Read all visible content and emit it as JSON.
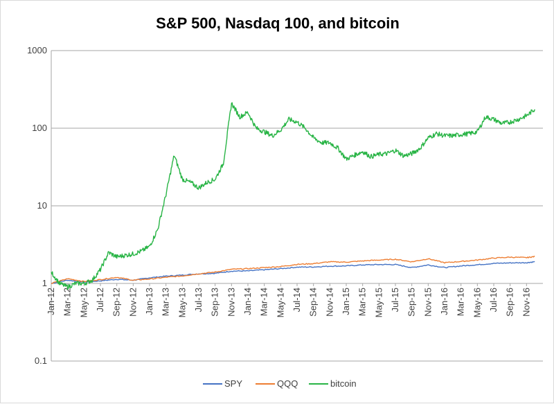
{
  "chart_data": {
    "type": "line",
    "title": "S&P 500, Nasdaq 100, and bitcoin",
    "xlabel": "",
    "ylabel": "",
    "y_scale": "log",
    "ylim": [
      0.1,
      1000
    ],
    "y_ticks": [
      "0.1",
      "1",
      "10",
      "100",
      "1000"
    ],
    "x_range": [
      "2012-01",
      "2016-12"
    ],
    "x_tick_labels": [
      "Jan-12",
      "Mar-12",
      "May-12",
      "Jul-12",
      "Sep-12",
      "Nov-12",
      "Jan-13",
      "Mar-13",
      "May-13",
      "Jul-13",
      "Sep-13",
      "Nov-13",
      "Jan-14",
      "Mar-14",
      "May-14",
      "Jul-14",
      "Sep-14",
      "Nov-14",
      "Jan-15",
      "Mar-15",
      "May-15",
      "Jul-15",
      "Sep-15",
      "Nov-15",
      "Jan-16",
      "Mar-16",
      "May-16",
      "Jul-16",
      "Sep-16",
      "Nov-16"
    ],
    "grid": "horizontal",
    "legend_position": "bottom",
    "series": [
      {
        "name": "SPY",
        "color": "#4472c4",
        "points": [
          [
            "2012-01",
            1.0
          ],
          [
            "2012-03",
            1.1
          ],
          [
            "2012-05",
            1.04
          ],
          [
            "2012-07",
            1.08
          ],
          [
            "2012-09",
            1.13
          ],
          [
            "2012-11",
            1.1
          ],
          [
            "2013-01",
            1.18
          ],
          [
            "2013-03",
            1.24
          ],
          [
            "2013-05",
            1.28
          ],
          [
            "2013-07",
            1.33
          ],
          [
            "2013-09",
            1.35
          ],
          [
            "2013-11",
            1.44
          ],
          [
            "2014-01",
            1.45
          ],
          [
            "2014-03",
            1.5
          ],
          [
            "2014-05",
            1.55
          ],
          [
            "2014-07",
            1.62
          ],
          [
            "2014-09",
            1.63
          ],
          [
            "2014-11",
            1.67
          ],
          [
            "2015-01",
            1.68
          ],
          [
            "2015-03",
            1.73
          ],
          [
            "2015-05",
            1.75
          ],
          [
            "2015-07",
            1.75
          ],
          [
            "2015-09",
            1.6
          ],
          [
            "2015-11",
            1.73
          ],
          [
            "2016-01",
            1.6
          ],
          [
            "2016-03",
            1.68
          ],
          [
            "2016-05",
            1.74
          ],
          [
            "2016-07",
            1.81
          ],
          [
            "2016-09",
            1.84
          ],
          [
            "2016-11",
            1.85
          ],
          [
            "2016-12",
            1.9
          ]
        ]
      },
      {
        "name": "QQQ",
        "color": "#ed7d31",
        "points": [
          [
            "2012-01",
            1.0
          ],
          [
            "2012-03",
            1.15
          ],
          [
            "2012-05",
            1.06
          ],
          [
            "2012-07",
            1.12
          ],
          [
            "2012-09",
            1.2
          ],
          [
            "2012-11",
            1.1
          ],
          [
            "2013-01",
            1.14
          ],
          [
            "2013-03",
            1.2
          ],
          [
            "2013-05",
            1.25
          ],
          [
            "2013-07",
            1.33
          ],
          [
            "2013-09",
            1.4
          ],
          [
            "2013-11",
            1.52
          ],
          [
            "2014-01",
            1.55
          ],
          [
            "2014-03",
            1.6
          ],
          [
            "2014-05",
            1.65
          ],
          [
            "2014-07",
            1.76
          ],
          [
            "2014-09",
            1.8
          ],
          [
            "2014-11",
            1.9
          ],
          [
            "2015-01",
            1.88
          ],
          [
            "2015-03",
            1.95
          ],
          [
            "2015-05",
            2.0
          ],
          [
            "2015-07",
            2.05
          ],
          [
            "2015-09",
            1.9
          ],
          [
            "2015-11",
            2.08
          ],
          [
            "2016-01",
            1.85
          ],
          [
            "2016-03",
            1.92
          ],
          [
            "2016-05",
            2.0
          ],
          [
            "2016-07",
            2.12
          ],
          [
            "2016-09",
            2.18
          ],
          [
            "2016-11",
            2.15
          ],
          [
            "2016-12",
            2.22
          ]
        ]
      },
      {
        "name": "bitcoin",
        "color": "#28b445",
        "points": [
          [
            "2012-01",
            1.4
          ],
          [
            "2012-02",
            1.0
          ],
          [
            "2012-03",
            0.9
          ],
          [
            "2012-04",
            1.0
          ],
          [
            "2012-05",
            1.0
          ],
          [
            "2012-06",
            1.1
          ],
          [
            "2012-07",
            1.5
          ],
          [
            "2012-08",
            2.5
          ],
          [
            "2012-09",
            2.2
          ],
          [
            "2012-10",
            2.3
          ],
          [
            "2012-11",
            2.4
          ],
          [
            "2012-12",
            2.6
          ],
          [
            "2013-01",
            3.0
          ],
          [
            "2013-02",
            5.0
          ],
          [
            "2013-03",
            14
          ],
          [
            "2013-04",
            45
          ],
          [
            "2013-05",
            22
          ],
          [
            "2013-06",
            20
          ],
          [
            "2013-07",
            17
          ],
          [
            "2013-08",
            20
          ],
          [
            "2013-09",
            22
          ],
          [
            "2013-10",
            35
          ],
          [
            "2013-11",
            210
          ],
          [
            "2013-12",
            140
          ],
          [
            "2014-01",
            160
          ],
          [
            "2014-02",
            100
          ],
          [
            "2014-03",
            90
          ],
          [
            "2014-04",
            80
          ],
          [
            "2014-05",
            95
          ],
          [
            "2014-06",
            130
          ],
          [
            "2014-07",
            120
          ],
          [
            "2014-08",
            100
          ],
          [
            "2014-09",
            75
          ],
          [
            "2014-10",
            65
          ],
          [
            "2014-11",
            65
          ],
          [
            "2014-12",
            55
          ],
          [
            "2015-01",
            40
          ],
          [
            "2015-02",
            45
          ],
          [
            "2015-03",
            50
          ],
          [
            "2015-04",
            43
          ],
          [
            "2015-05",
            46
          ],
          [
            "2015-06",
            47
          ],
          [
            "2015-07",
            52
          ],
          [
            "2015-08",
            44
          ],
          [
            "2015-09",
            47
          ],
          [
            "2015-10",
            55
          ],
          [
            "2015-11",
            75
          ],
          [
            "2015-12",
            85
          ],
          [
            "2016-01",
            80
          ],
          [
            "2016-02",
            80
          ],
          [
            "2016-03",
            83
          ],
          [
            "2016-04",
            85
          ],
          [
            "2016-05",
            90
          ],
          [
            "2016-06",
            140
          ],
          [
            "2016-07",
            130
          ],
          [
            "2016-08",
            115
          ],
          [
            "2016-09",
            120
          ],
          [
            "2016-10",
            130
          ],
          [
            "2016-11",
            145
          ],
          [
            "2016-12",
            175
          ]
        ]
      }
    ]
  }
}
